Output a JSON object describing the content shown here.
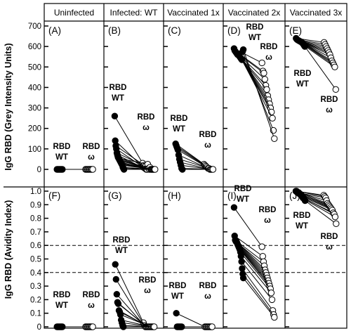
{
  "figure": {
    "columns": [
      "Uninfected",
      "Infected: WT",
      "Vaccinated 1x",
      "Vaccinated  2x",
      "Vaccinated 3x"
    ],
    "top_panel_letters": [
      "(A)",
      "(B)",
      "(C)",
      "(D)",
      "(E)"
    ],
    "bottom_panel_letters": [
      "(F)",
      "(G)",
      "(H)",
      "(I)",
      "(J)"
    ],
    "top_ylabel": "IgG RBD (Grey  Intensity  Units)",
    "bottom_ylabel": "IgG RBD (Avidity  Index)",
    "wt_label": [
      "RBD",
      "WT"
    ],
    "omega_label": [
      "RBD",
      "ω"
    ],
    "top_yticks": [
      "0",
      "100",
      "200",
      "300",
      "400",
      "500",
      "600",
      "700"
    ],
    "bottom_yticks": [
      "0",
      "0.1",
      "0.2",
      "0.3",
      "0.4",
      "0.5",
      "0.6",
      "0.7",
      "0.8",
      "0.9",
      "1.0"
    ],
    "dashed_lines": [
      0.4,
      0.6
    ],
    "wt_marker_color": "#000000",
    "omega_marker_color": "#ffffff"
  },
  "chart_data": [
    {
      "type": "scatter",
      "panel": "(A)",
      "column": "Uninfected",
      "ylabel": "IgG RBD (Grey  Intensity  Units)",
      "ylim": [
        0,
        700
      ],
      "pairs": [
        [
          0,
          0
        ],
        [
          0,
          0
        ],
        [
          0,
          0
        ],
        [
          0,
          0
        ],
        [
          0,
          0
        ],
        [
          0,
          0
        ],
        [
          0,
          0
        ],
        [
          0,
          0
        ]
      ]
    },
    {
      "type": "scatter",
      "panel": "(B)",
      "column": "Infected: WT",
      "ylabel": "IgG RBD (Grey  Intensity  Units)",
      "ylim": [
        0,
        700
      ],
      "pairs": [
        [
          260,
          30
        ],
        [
          140,
          10
        ],
        [
          115,
          20
        ],
        [
          100,
          5
        ],
        [
          80,
          15
        ],
        [
          70,
          0
        ],
        [
          60,
          0
        ],
        [
          55,
          25
        ],
        [
          50,
          5
        ],
        [
          45,
          0
        ],
        [
          40,
          10
        ],
        [
          35,
          0
        ],
        [
          30,
          0
        ],
        [
          25,
          0
        ],
        [
          20,
          0
        ],
        [
          10,
          0
        ],
        [
          5,
          0
        ],
        [
          0,
          0
        ]
      ]
    },
    {
      "type": "scatter",
      "panel": "(C)",
      "column": "Vaccinated 1x",
      "ylabel": "IgG RBD (Grey  Intensity  Units)",
      "ylim": [
        0,
        700
      ],
      "pairs": [
        [
          125,
          25
        ],
        [
          115,
          20
        ],
        [
          105,
          15
        ],
        [
          95,
          10
        ],
        [
          70,
          5
        ],
        [
          50,
          5
        ],
        [
          35,
          0
        ],
        [
          20,
          0
        ],
        [
          5,
          0
        ],
        [
          0,
          0
        ]
      ]
    },
    {
      "type": "scatter",
      "panel": "(D)",
      "column": "Vaccinated  2x",
      "ylabel": "IgG RBD (Grey  Intensity  Units)",
      "ylim": [
        0,
        700
      ],
      "pairs": [
        [
          590,
          520
        ],
        [
          580,
          480
        ],
        [
          575,
          470
        ],
        [
          570,
          440
        ],
        [
          565,
          410
        ],
        [
          560,
          390
        ],
        [
          560,
          360
        ],
        [
          555,
          340
        ],
        [
          550,
          320
        ],
        [
          545,
          300
        ],
        [
          540,
          280
        ],
        [
          535,
          250
        ],
        [
          575,
          190
        ],
        [
          585,
          150
        ]
      ]
    },
    {
      "type": "scatter",
      "panel": "(E)",
      "column": "Vaccinated 3x",
      "ylabel": "IgG RBD (Grey  Intensity  Units)",
      "ylim": [
        0,
        700
      ],
      "pairs": [
        [
          640,
          620
        ],
        [
          635,
          610
        ],
        [
          632,
          600
        ],
        [
          630,
          590
        ],
        [
          628,
          580
        ],
        [
          626,
          570
        ],
        [
          624,
          560
        ],
        [
          622,
          545
        ],
        [
          620,
          530
        ],
        [
          615,
          520
        ],
        [
          612,
          510
        ],
        [
          605,
          500
        ],
        [
          600,
          390
        ]
      ]
    },
    {
      "type": "scatter",
      "panel": "(F)",
      "column": "Uninfected",
      "ylabel": "IgG RBD (Avidity  Index)",
      "ylim": [
        0,
        1.0
      ],
      "pairs": [
        [
          0,
          0
        ],
        [
          0,
          0
        ],
        [
          0,
          0
        ],
        [
          0,
          0
        ],
        [
          0,
          0
        ],
        [
          0,
          0
        ],
        [
          0,
          0
        ],
        [
          0,
          0
        ]
      ]
    },
    {
      "type": "scatter",
      "panel": "(G)",
      "column": "Infected: WT",
      "ylabel": "IgG RBD (Avidity  Index)",
      "ylim": [
        0,
        1.0
      ],
      "pairs": [
        [
          0.46,
          0.03
        ],
        [
          0.35,
          0.01
        ],
        [
          0.24,
          0
        ],
        [
          0.18,
          0
        ],
        [
          0.17,
          0
        ],
        [
          0.12,
          0
        ],
        [
          0.11,
          0
        ],
        [
          0.09,
          0
        ],
        [
          0.05,
          0
        ],
        [
          0.03,
          0
        ],
        [
          0.01,
          0
        ],
        [
          0,
          0
        ]
      ]
    },
    {
      "type": "scatter",
      "panel": "(H)",
      "column": "Vaccinated 1x",
      "ylabel": "IgG RBD (Avidity  Index)",
      "ylim": [
        0,
        1.0
      ],
      "pairs": [
        [
          0.1,
          0
        ],
        [
          0,
          0
        ],
        [
          0,
          0
        ],
        [
          0,
          0
        ],
        [
          0,
          0
        ],
        [
          0,
          0
        ],
        [
          0,
          0
        ],
        [
          0,
          0
        ]
      ]
    },
    {
      "type": "scatter",
      "panel": "(I)",
      "column": "Vaccinated  2x",
      "ylabel": "IgG RBD (Avidity  Index)",
      "ylim": [
        0,
        1.0
      ],
      "pairs": [
        [
          0.88,
          0.59
        ],
        [
          0.67,
          0.52
        ],
        [
          0.64,
          0.48
        ],
        [
          0.63,
          0.45
        ],
        [
          0.63,
          0.42
        ],
        [
          0.62,
          0.4
        ],
        [
          0.61,
          0.38
        ],
        [
          0.6,
          0.36
        ],
        [
          0.59,
          0.34
        ],
        [
          0.58,
          0.32
        ],
        [
          0.57,
          0.3
        ],
        [
          0.55,
          0.28
        ],
        [
          0.52,
          0.25
        ],
        [
          0.48,
          0.2
        ],
        [
          0.43,
          0.12
        ],
        [
          0.39,
          0.09
        ],
        [
          0.36,
          0.07
        ]
      ]
    },
    {
      "type": "scatter",
      "panel": "(J)",
      "column": "Vaccinated 3x",
      "ylabel": "IgG RBD (Avidity  Index)",
      "ylim": [
        0,
        1.0
      ],
      "pairs": [
        [
          1.0,
          0.97
        ],
        [
          1.0,
          0.96
        ],
        [
          0.99,
          0.95
        ],
        [
          0.99,
          0.93
        ],
        [
          0.99,
          0.91
        ],
        [
          0.98,
          0.9
        ],
        [
          0.98,
          0.89
        ],
        [
          0.97,
          0.88
        ],
        [
          0.97,
          0.87
        ],
        [
          0.96,
          0.86
        ],
        [
          0.95,
          0.84
        ],
        [
          0.95,
          0.83
        ],
        [
          0.94,
          0.81
        ],
        [
          0.93,
          0.76
        ]
      ]
    }
  ]
}
